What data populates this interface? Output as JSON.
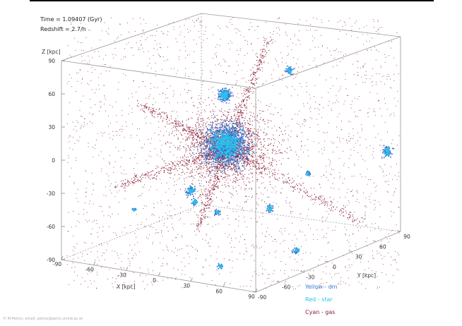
{
  "header": {
    "time_text": "Time = 1.09407 (Gyr)",
    "redshift_text": "Redshift = 2.7/h"
  },
  "chart_data": {
    "type": "scatter",
    "title": "",
    "xlabel": "X [kpc]",
    "ylabel": "Y [kpc]",
    "zlabel": "Z [kpc]",
    "xlim": [
      -90,
      90
    ],
    "ylim": [
      -90,
      90
    ],
    "zlim": [
      -90,
      90
    ],
    "x_ticks": [
      "-90",
      "-60",
      "-30",
      "0",
      "30",
      "60",
      "90"
    ],
    "y_ticks": [
      "-90",
      "-60",
      "-30",
      "0",
      "30",
      "60",
      "90"
    ],
    "z_ticks": [
      "90",
      "60",
      "30",
      "0",
      "-30",
      "-60",
      "-90"
    ],
    "series": [
      {
        "name": "Yellow - dm",
        "color": "#3a7bd5"
      },
      {
        "name": "Red - star",
        "color": "#29c3ea"
      },
      {
        "name": "Cyan - gas",
        "color": "#8b1d36"
      }
    ],
    "colors": {
      "box": "#999999",
      "dm": "#3a7bd5",
      "star": "#29c3ea",
      "gas": "#8b1d36"
    }
  },
  "legend": [
    "Yellow - dm",
    "Red - star",
    "Cyan - gas"
  ],
  "credit": "© M.Petrov, email: petrov@astro.univie.ac.at"
}
